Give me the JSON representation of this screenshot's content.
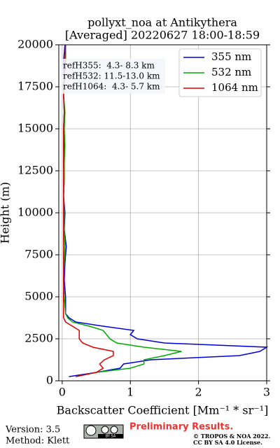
{
  "chart_data": {
    "type": "profile",
    "title": "pollyxt_noa at Antikythera",
    "subtitle": "[Averaged] 20220627 18:00-18:59",
    "xlabel": "Backscatter Coefficient [Mm⁻¹ * sr⁻¹]",
    "ylabel": "Height (m)",
    "heights": [
      250,
      500,
      750,
      1000,
      1250,
      1500,
      1750,
      2000,
      2250,
      2500,
      2750,
      3000,
      3250,
      3500,
      3750,
      4000,
      5000,
      6000,
      7000,
      8000,
      9000,
      10000,
      11000,
      12000,
      13000,
      14000,
      15000,
      16000,
      17000,
      18000,
      19000,
      20000
    ],
    "series": [
      {
        "name": "355 nm",
        "color": "#0000dd",
        "values": [
          0.1,
          0.5,
          0.85,
          0.9,
          1.3,
          2.6,
          2.9,
          3.0,
          1.5,
          1.1,
          1.0,
          1.05,
          0.6,
          0.2,
          0.1,
          0.05,
          0.05,
          0.03,
          0.04,
          0.06,
          0.03,
          0.04,
          0.02,
          0.03,
          0.02,
          0.03,
          0.02,
          0.03,
          0.02,
          0.03,
          0.02,
          0.04
        ]
      },
      {
        "name": "532 nm",
        "color": "#00aa00",
        "values": [
          0.2,
          0.5,
          1.0,
          1.2,
          1.2,
          1.5,
          1.75,
          1.2,
          0.8,
          0.7,
          0.65,
          0.6,
          0.4,
          0.15,
          0.08,
          0.05,
          0.03,
          0.02,
          0.03,
          0.04,
          0.03,
          0.03,
          0.02,
          0.03,
          0.03,
          0.04,
          0.03,
          0.04,
          0.02,
          0.03,
          0.05,
          0.05
        ]
      },
      {
        "name": "1064 nm",
        "color": "#dd0000",
        "values": [
          0.2,
          0.5,
          0.6,
          0.55,
          0.62,
          0.75,
          0.75,
          0.45,
          0.3,
          0.25,
          0.25,
          0.25,
          0.15,
          0.05,
          0.02,
          0.02,
          0.02,
          0.02,
          0.02,
          0.02,
          0.02,
          0.02,
          0.02,
          0.02,
          0.02,
          0.02,
          0.02,
          0.03,
          0.02,
          0.03,
          0.04,
          0.05
        ]
      }
    ],
    "xlim": [
      -0.05,
      3
    ],
    "xticks": [
      0,
      1,
      2,
      3
    ],
    "ylim": [
      0,
      20000
    ],
    "yticks": [
      0,
      2500,
      5000,
      7500,
      10000,
      12500,
      15000,
      17500,
      20000
    ],
    "grid": true,
    "legend": "upper right",
    "annotations": [
      "refH355:  4.3- 8.3 km",
      "refH532: 11.5-13.0 km",
      "refH1064:  4.3- 5.7 km"
    ]
  },
  "footer": {
    "version": "Version: 3.5",
    "method": "Method: Klett",
    "badge": "BY SA",
    "preliminary": "Preliminary Results.",
    "copyright": "© TROPOS & NOA 2022.",
    "license": "CC BY SA 4.0 License."
  }
}
